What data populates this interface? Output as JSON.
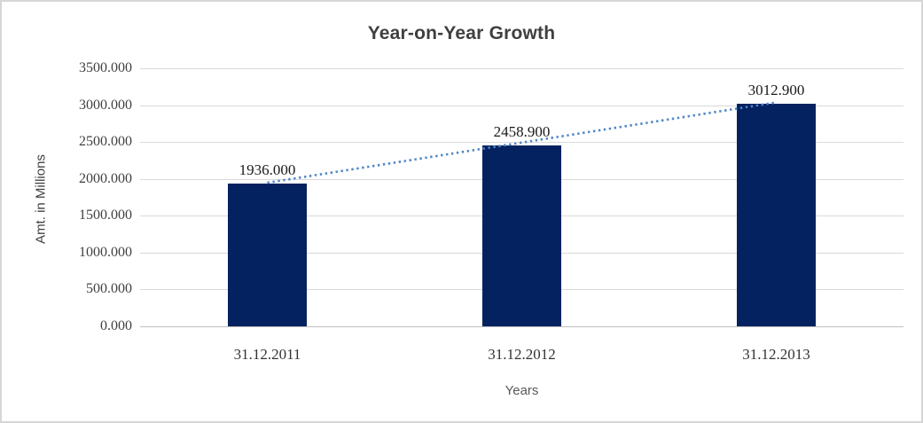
{
  "chart_data": {
    "type": "bar",
    "title": "Year-on-Year Growth",
    "xlabel": "Years",
    "ylabel": "Amt. in Millions",
    "categories": [
      "31.12.2011",
      "31.12.2012",
      "31.12.2013"
    ],
    "values": [
      1936.0,
      2458.9,
      3012.9
    ],
    "data_labels": [
      "1936.000",
      "2458.900",
      "3012.900"
    ],
    "ylim": [
      0,
      3500
    ],
    "ytick_step": 500,
    "ytick_labels_top_to_bottom": [
      "3500.000",
      "3000.000",
      "2500.000",
      "2000.000",
      "1500.000",
      "1000.000",
      "500.000",
      "0.000"
    ],
    "grid": true,
    "legend": "none",
    "trendline": {
      "style": "dotted",
      "from_category": "31.12.2011",
      "to_category": "31.12.2013",
      "color": "#4e87c8"
    },
    "colors": {
      "bar": "#03225f",
      "trendline": "#4e87c8",
      "gridline": "#d9d9d9",
      "axis_line": "#bfbfbf",
      "title_text": "#3f3f3f",
      "tick_text": "#3f3f3f",
      "data_label_text": "#1a1a1a",
      "x_title_text": "#595959",
      "frame_border": "#d6d6d6",
      "background": "#ffffff"
    }
  }
}
